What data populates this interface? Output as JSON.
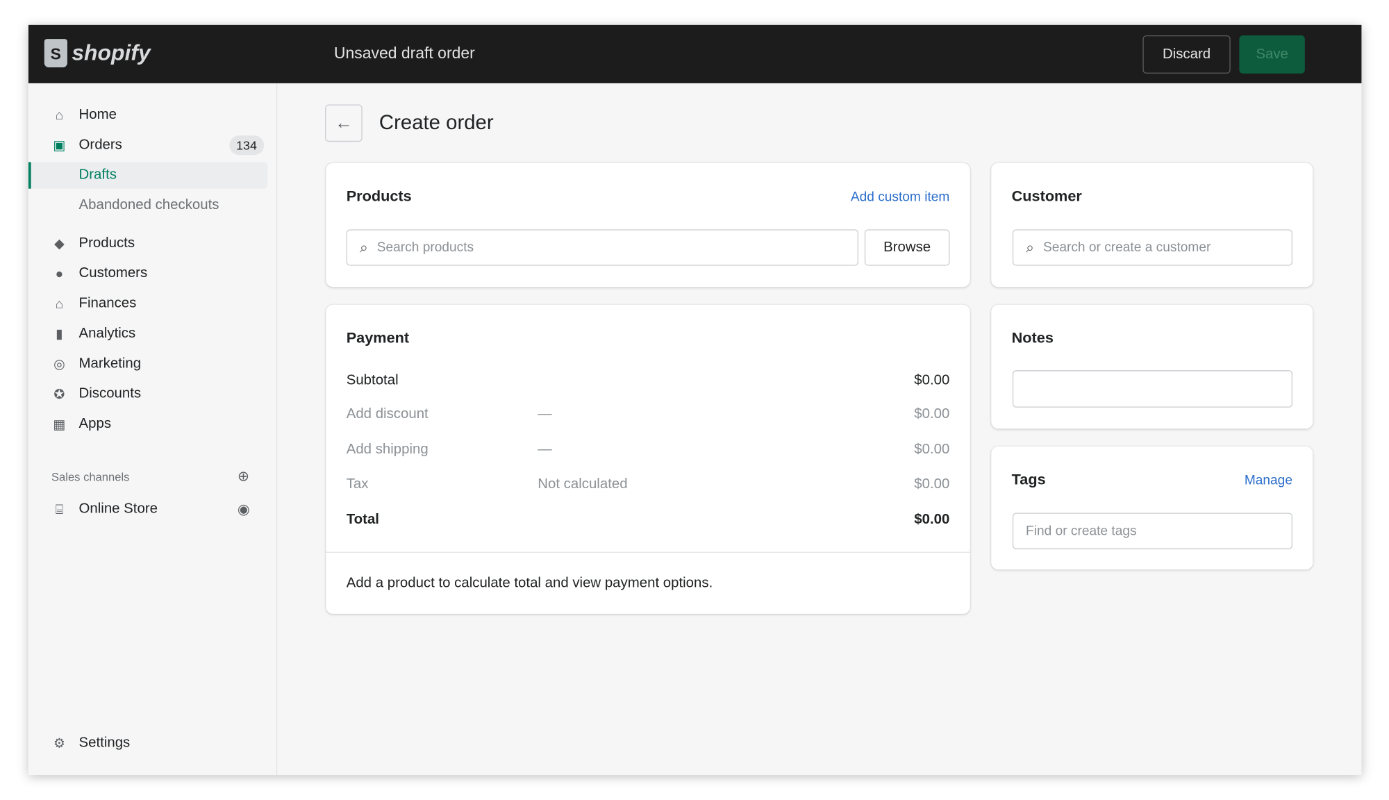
{
  "header": {
    "logo": "shopify",
    "title": "Unsaved draft order",
    "discard": "Discard",
    "save": "Save"
  },
  "sidebar": {
    "items": [
      {
        "label": "Home",
        "icon": "home-icon"
      },
      {
        "label": "Orders",
        "icon": "orders-icon",
        "badge": "134"
      },
      {
        "label": "Drafts"
      },
      {
        "label": "Abandoned checkouts"
      },
      {
        "label": "Products",
        "icon": "tag-icon"
      },
      {
        "label": "Customers",
        "icon": "person-icon"
      },
      {
        "label": "Finances",
        "icon": "bank-icon"
      },
      {
        "label": "Analytics",
        "icon": "bar-chart-icon"
      },
      {
        "label": "Marketing",
        "icon": "target-icon"
      },
      {
        "label": "Discounts",
        "icon": "discount-icon"
      },
      {
        "label": "Apps",
        "icon": "apps-icon"
      }
    ],
    "sales_channels": "Sales channels",
    "online_store": "Online Store",
    "settings": "Settings"
  },
  "page": {
    "title": "Create order"
  },
  "products": {
    "title": "Products",
    "add_custom": "Add custom item",
    "search_placeholder": "Search products",
    "browse": "Browse"
  },
  "payment": {
    "title": "Payment",
    "rows": [
      {
        "label": "Subtotal",
        "middle": "",
        "value": "$0.00"
      },
      {
        "label": "Add discount",
        "middle": "—",
        "value": "$0.00"
      },
      {
        "label": "Add shipping",
        "middle": "—",
        "value": "$0.00"
      },
      {
        "label": "Tax",
        "middle": "Not calculated",
        "value": "$0.00"
      },
      {
        "label": "Total",
        "middle": "",
        "value": "$0.00"
      }
    ],
    "footer": "Add a product to calculate total and view payment options."
  },
  "customer": {
    "title": "Customer",
    "search_placeholder": "Search or create a customer"
  },
  "notes": {
    "title": "Notes",
    "value": ""
  },
  "tags": {
    "title": "Tags",
    "manage": "Manage",
    "placeholder": "Find or create tags"
  }
}
